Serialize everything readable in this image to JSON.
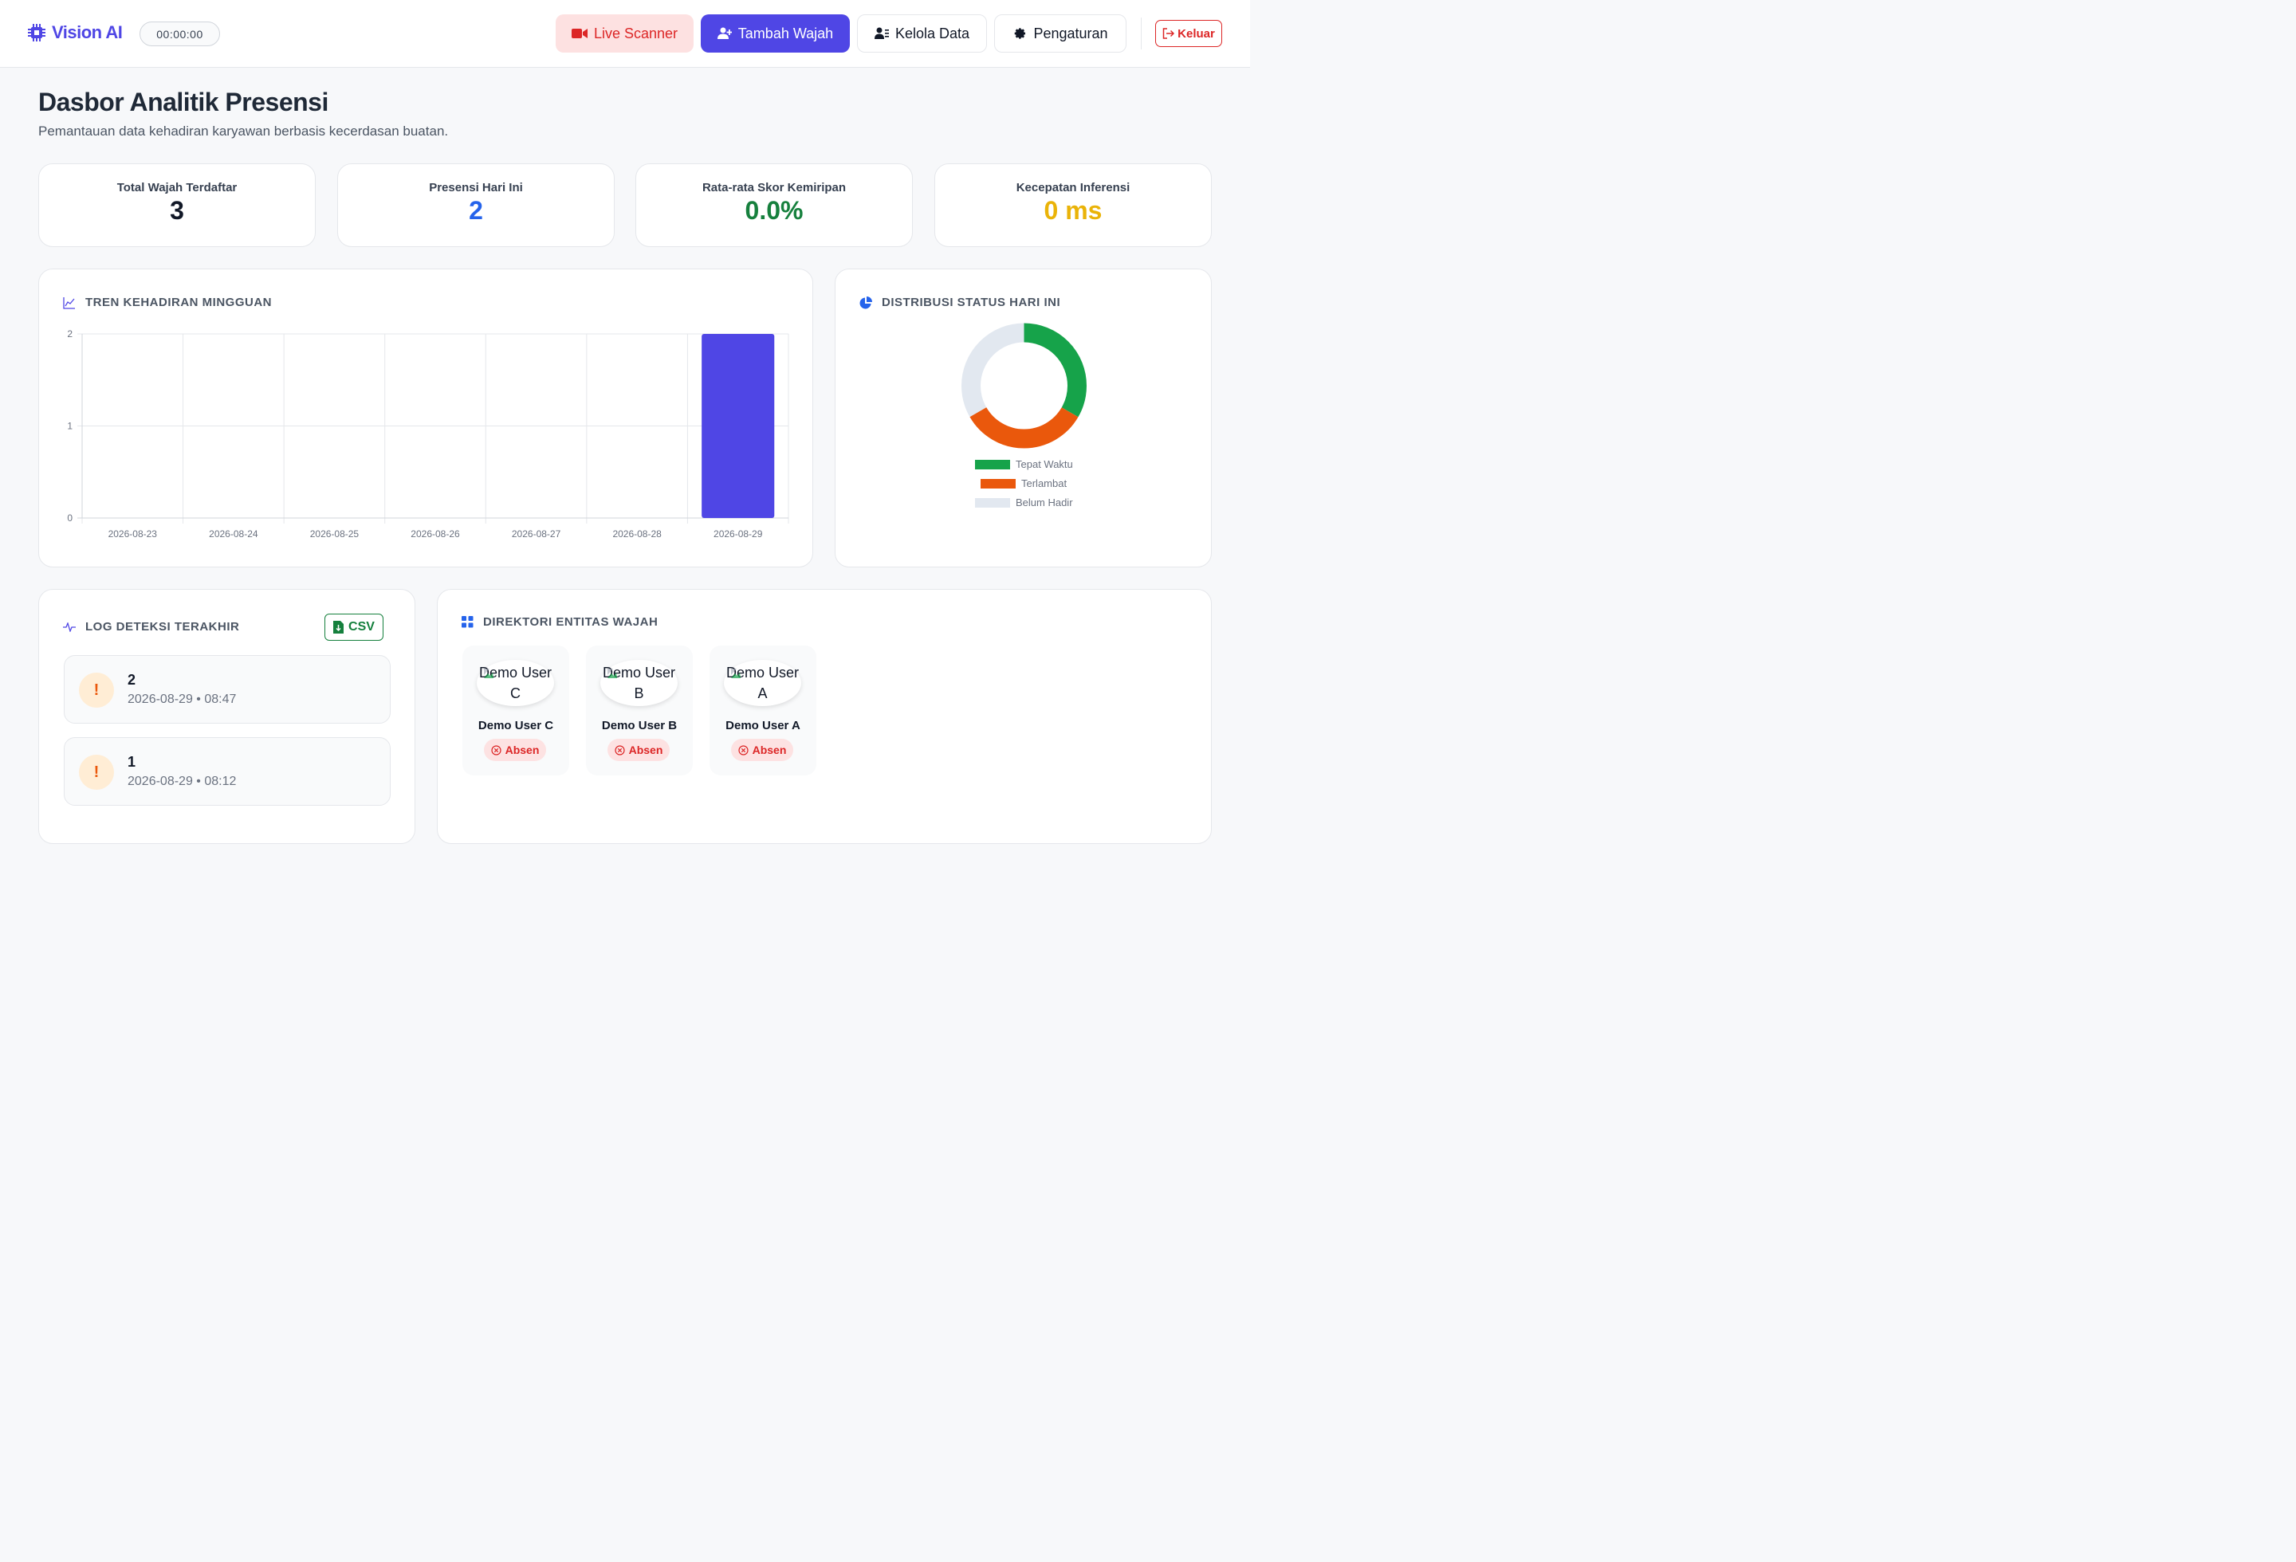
{
  "app": {
    "name": "Vision AI",
    "timer": "00:00:00"
  },
  "nav": {
    "live_scanner": "Live Scanner",
    "tambah_wajah": "Tambah Wajah",
    "kelola_data": "Kelola Data",
    "pengaturan": "Pengaturan",
    "keluar": "Keluar"
  },
  "page": {
    "title": "Dasbor Analitik Presensi",
    "subtitle": "Pemantauan data kehadiran karyawan berbasis kecerdasan buatan."
  },
  "stats": [
    {
      "label": "Total Wajah Terdaftar",
      "value": "3",
      "color": "#111827"
    },
    {
      "label": "Presensi Hari Ini",
      "value": "2",
      "color": "#2563eb"
    },
    {
      "label": "Rata-rata Skor Kemiripan",
      "value": "0.0%",
      "color": "#16803d"
    },
    {
      "label": "Kecepatan Inferensi",
      "value": "0 ms",
      "color": "#eab308"
    }
  ],
  "trend": {
    "title": "TREN KEHADIRAN MINGGUAN",
    "chart_data": {
      "type": "bar",
      "categories": [
        "2026-08-23",
        "2026-08-24",
        "2026-08-25",
        "2026-08-26",
        "2026-08-27",
        "2026-08-28",
        "2026-08-29"
      ],
      "values": [
        0,
        0,
        0,
        0,
        0,
        0,
        2
      ],
      "yticks": [
        "0",
        "1",
        "2"
      ],
      "ylim": [
        0,
        2
      ],
      "color": "#4f46e5",
      "grid": true
    }
  },
  "distribution": {
    "title": "DISTRIBUSI STATUS HARI INI",
    "chart_data": {
      "type": "pie",
      "labels": [
        "Tepat Waktu",
        "Terlambat",
        "Belum Hadir"
      ],
      "values": [
        1,
        1,
        1
      ],
      "colors": [
        "#16a34a",
        "#ea580c",
        "#e2e8f0"
      ],
      "legend": "bottom"
    }
  },
  "log": {
    "title": "LOG DETEKSI TERAKHIR",
    "csv_label": "CSV",
    "items": [
      {
        "badge": "!",
        "name": "2",
        "time": "2026-08-29 • 08:47"
      },
      {
        "badge": "!",
        "name": "1",
        "time": "2026-08-29 • 08:12"
      }
    ]
  },
  "directory": {
    "title": "DIREKTORI ENTITAS WAJAH",
    "faces": [
      {
        "avatar_alt": "Demo User C",
        "name": "Demo User C",
        "status": "Absen"
      },
      {
        "avatar_alt": "Demo User B",
        "name": "Demo User B",
        "status": "Absen"
      },
      {
        "avatar_alt": "Demo User A",
        "name": "Demo User A",
        "status": "Absen"
      }
    ]
  }
}
